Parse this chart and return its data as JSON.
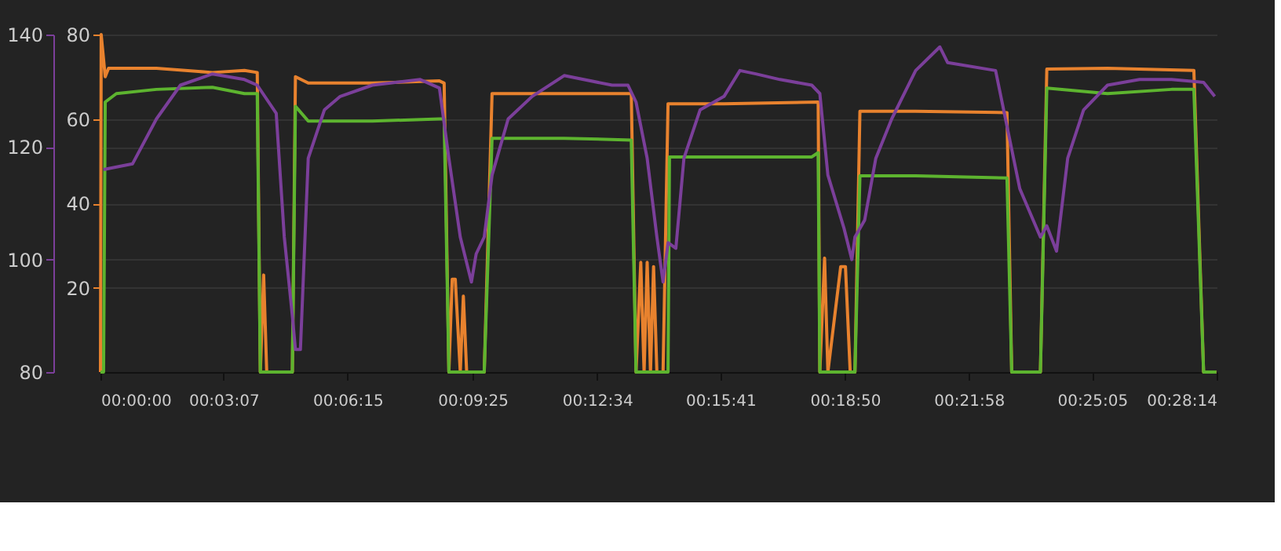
{
  "chart_data": {
    "type": "line",
    "xlim": [
      0,
      0.4706
    ],
    "xticks": [
      {
        "value": 0,
        "label": "00:00:00"
      },
      {
        "value": 0.0519,
        "label": "00:03:07"
      },
      {
        "value": 0.1042,
        "label": "00:06:15"
      },
      {
        "value": 0.1569,
        "label": "00:09:25"
      },
      {
        "value": 0.2094,
        "label": "00:12:34"
      },
      {
        "value": 0.2614,
        "label": "00:15:41"
      },
      {
        "value": 0.3139,
        "label": "00:18:50"
      },
      {
        "value": 0.3661,
        "label": "00:21:58"
      },
      {
        "value": 0.4181,
        "label": "00:25:05"
      },
      {
        "value": 0.4706,
        "label": "00:28:14"
      }
    ],
    "ylim": [
      0,
      80
    ],
    "yticks": [
      20,
      40,
      60,
      80
    ],
    "y2lim": [
      80,
      140
    ],
    "y2ticks": [
      80,
      100,
      120,
      140
    ],
    "grid": "y",
    "marker": "none",
    "line_style": "solid",
    "series": [
      {
        "color": "#7b3f9a",
        "axis": "y2",
        "x": [
          0.0013,
          0.0135,
          0.0236,
          0.0337,
          0.0472,
          0.0607,
          0.0661,
          0.0741,
          0.0775,
          0.0809,
          0.0822,
          0.0843,
          0.0876,
          0.0944,
          0.1011,
          0.1146,
          0.1348,
          0.1429,
          0.1469,
          0.1517,
          0.1564,
          0.1584,
          0.1618,
          0.1651,
          0.1719,
          0.182,
          0.1955,
          0.2157,
          0.2224,
          0.2258,
          0.2305,
          0.2346,
          0.2372,
          0.2393,
          0.2426,
          0.246,
          0.2528,
          0.2629,
          0.2696,
          0.2763,
          0.2865,
          0.2999,
          0.3033,
          0.3067,
          0.3134,
          0.3168,
          0.3181,
          0.3222,
          0.3269,
          0.3336,
          0.3437,
          0.3539,
          0.3572,
          0.3774,
          0.3842,
          0.3876,
          0.3963,
          0.399,
          0.4031,
          0.4078,
          0.4145,
          0.4246,
          0.4381,
          0.4516,
          0.4651,
          0.4698
        ],
        "values": [
          116,
          117,
          125,
          131,
          133,
          132,
          131,
          126,
          104,
          90,
          84,
          84,
          118,
          126.6,
          129,
          131,
          132,
          130.5,
          118,
          104,
          96,
          101,
          104,
          115,
          125,
          129,
          132.7,
          131,
          131,
          128,
          118,
          104,
          96,
          103,
          102,
          118,
          126.6,
          129,
          133.6,
          133,
          132,
          131,
          129.5,
          115,
          105.7,
          100,
          104,
          107,
          118,
          125,
          133.6,
          137.8,
          135,
          133.6,
          119.6,
          112.6,
          104,
          106,
          101.5,
          118,
          126.6,
          131,
          132,
          132,
          131.5,
          129
        ]
      },
      {
        "color": "#e8822e",
        "x": [
          0,
          0.0003,
          0.002,
          0.0034,
          0.0236,
          0.0472,
          0.0607,
          0.0661,
          0.0674,
          0.0688,
          0.0701,
          0.0809,
          0.0822,
          0.0876,
          0.1146,
          0.1429,
          0.1449,
          0.1469,
          0.1483,
          0.1496,
          0.1517,
          0.153,
          0.1544,
          0.1618,
          0.1651,
          0.1955,
          0.2238,
          0.2258,
          0.2278,
          0.2292,
          0.2305,
          0.2319,
          0.2332,
          0.2346,
          0.2372,
          0.2393,
          0.2629,
          0.3026,
          0.3033,
          0.3053,
          0.3067,
          0.3121,
          0.3141,
          0.3161,
          0.3181,
          0.3202,
          0.3437,
          0.3822,
          0.3842,
          0.3963,
          0.399,
          0.4246,
          0.461,
          0.4651,
          0.4705
        ],
        "values": [
          0,
          80,
          70,
          72,
          72,
          71,
          71.5,
          71,
          0,
          23,
          0,
          0,
          70,
          68.5,
          68.5,
          69,
          68.5,
          0,
          22,
          22,
          0,
          18,
          0,
          0,
          66,
          66,
          66,
          0,
          26,
          0,
          26,
          0,
          25,
          0,
          0,
          63.6,
          63.6,
          64,
          0,
          27,
          0,
          25,
          25,
          0,
          0,
          61.8,
          61.8,
          61.5,
          0,
          0,
          71.8,
          72,
          71.5,
          0,
          0
        ]
      },
      {
        "color": "#5db42f",
        "x": [
          0,
          0.0013,
          0.002,
          0.0067,
          0.0236,
          0.0472,
          0.0607,
          0.0661,
          0.0674,
          0.0809,
          0.0822,
          0.0876,
          0.1146,
          0.1429,
          0.1449,
          0.1469,
          0.1618,
          0.1651,
          0.1955,
          0.2238,
          0.2258,
          0.2393,
          0.2399,
          0.2629,
          0.2999,
          0.3026,
          0.3033,
          0.3181,
          0.3202,
          0.3437,
          0.3822,
          0.3842,
          0.3963,
          0.399,
          0.4246,
          0.4516,
          0.461,
          0.4651,
          0.4705
        ],
        "values": [
          0,
          0,
          64,
          66,
          67,
          67.5,
          66,
          66,
          0,
          0,
          63,
          59.5,
          59.5,
          60,
          60,
          0,
          0,
          55.4,
          55.4,
          55,
          0,
          0,
          51,
          51,
          51,
          52,
          0,
          0,
          46.5,
          46.5,
          46,
          0,
          0,
          67.3,
          66,
          67,
          67,
          0,
          0
        ]
      }
    ]
  }
}
